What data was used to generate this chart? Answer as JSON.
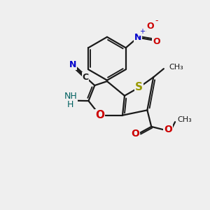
{
  "bg_color": "#efefef",
  "bond_color": "#1a1a1a",
  "bond_width": 1.6,
  "S_color": "#999900",
  "O_color": "#cc0000",
  "N_color": "#0000cc",
  "CN_color": "#006060",
  "NH2_color": "#006060",
  "figsize": [
    3.0,
    3.0
  ],
  "dpi": 100,
  "xlim": [
    0,
    10
  ],
  "ylim": [
    0,
    10
  ]
}
